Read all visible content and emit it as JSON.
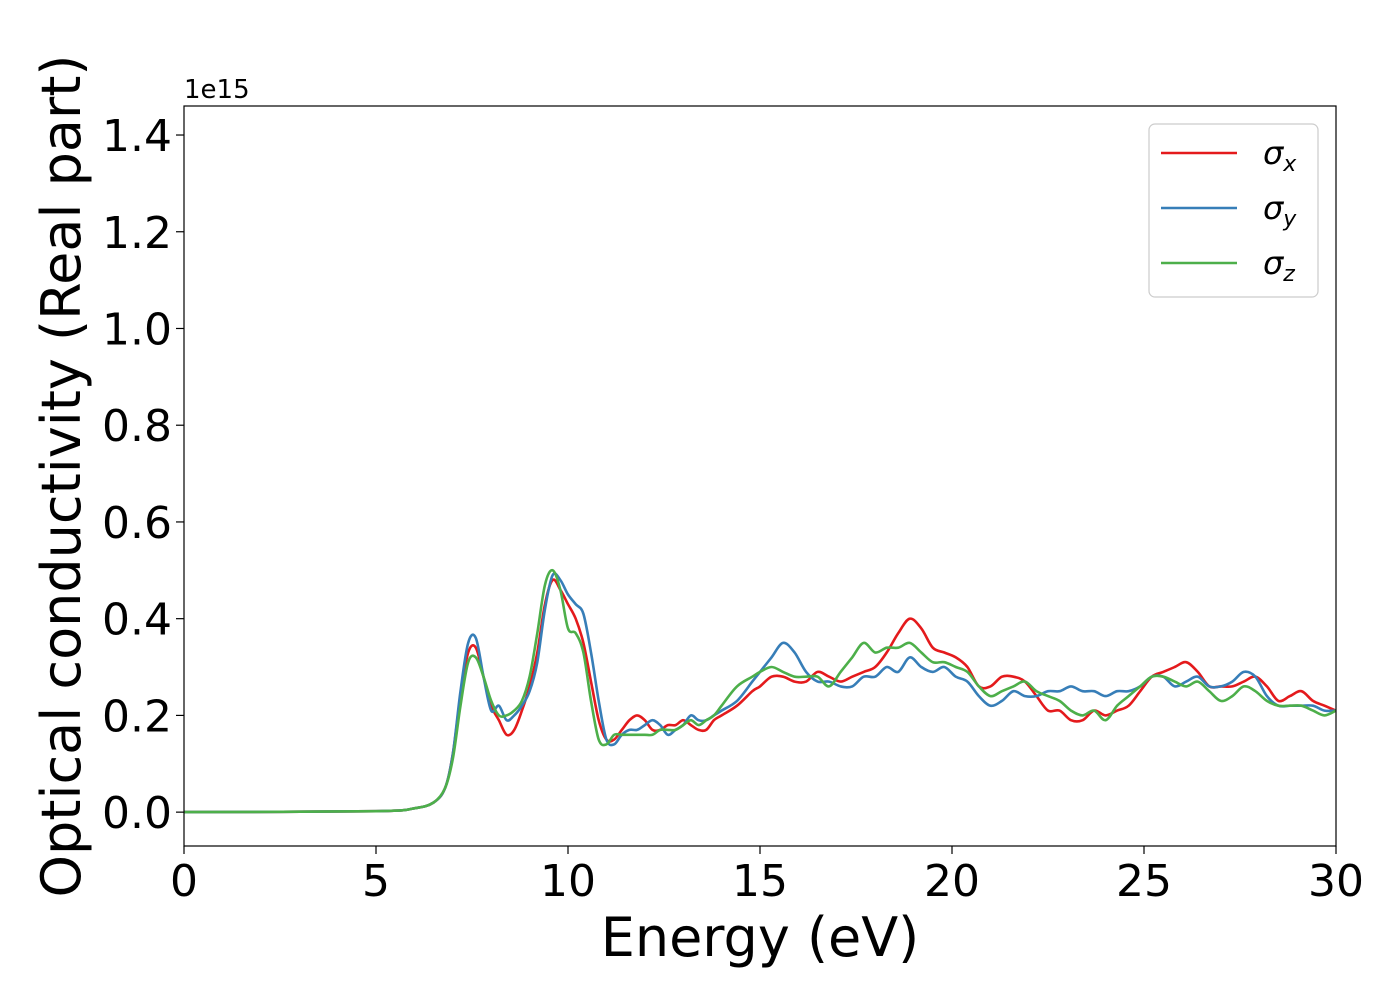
{
  "chart_data": {
    "type": "line",
    "xlabel": "Energy (eV)",
    "ylabel": "Optical conductivity (Real part)",
    "y_offset_label": "1e15",
    "xlim": [
      0,
      30
    ],
    "ylim": [
      -0.07,
      1.46
    ],
    "x_ticks": [
      0,
      5,
      10,
      15,
      20,
      25,
      30
    ],
    "x_tick_labels": [
      "0",
      "5",
      "10",
      "15",
      "20",
      "25",
      "30"
    ],
    "y_ticks": [
      0.0,
      0.2,
      0.4,
      0.6,
      0.8,
      1.0,
      1.2,
      1.4
    ],
    "y_tick_labels": [
      "0.0",
      "0.2",
      "0.4",
      "0.6",
      "0.8",
      "1.0",
      "1.2",
      "1.4"
    ],
    "grid": false,
    "legend_position": "top-right",
    "series": [
      {
        "name": "σ",
        "subscript": "x",
        "color": "#e41a1c",
        "x": [
          0,
          5,
          6,
          6.5,
          6.8,
          7.0,
          7.2,
          7.4,
          7.6,
          7.8,
          8.0,
          8.2,
          8.4,
          8.6,
          8.8,
          9.0,
          9.2,
          9.4,
          9.6,
          9.8,
          10.0,
          10.2,
          10.4,
          10.6,
          10.8,
          11.0,
          11.2,
          11.4,
          11.6,
          11.8,
          12.0,
          12.2,
          12.4,
          12.6,
          12.8,
          13.0,
          13.2,
          13.4,
          13.6,
          13.8,
          14.0,
          14.4,
          14.8,
          15.0,
          15.3,
          15.6,
          15.9,
          16.2,
          16.5,
          16.8,
          17.1,
          17.4,
          17.7,
          18.0,
          18.3,
          18.6,
          18.9,
          19.2,
          19.5,
          19.8,
          20.1,
          20.4,
          20.7,
          21.0,
          21.3,
          21.6,
          21.9,
          22.2,
          22.5,
          22.8,
          23.1,
          23.4,
          23.7,
          24.0,
          24.3,
          24.6,
          24.9,
          25.2,
          25.5,
          25.8,
          26.1,
          26.4,
          26.7,
          27.0,
          27.3,
          27.6,
          27.9,
          28.2,
          28.5,
          28.8,
          29.1,
          29.4,
          29.7,
          30.0
        ],
        "values": [
          0.0,
          0.002,
          0.008,
          0.02,
          0.05,
          0.12,
          0.24,
          0.33,
          0.34,
          0.28,
          0.22,
          0.19,
          0.16,
          0.17,
          0.21,
          0.26,
          0.33,
          0.43,
          0.48,
          0.46,
          0.43,
          0.4,
          0.35,
          0.27,
          0.19,
          0.15,
          0.15,
          0.17,
          0.19,
          0.2,
          0.19,
          0.17,
          0.17,
          0.18,
          0.18,
          0.19,
          0.18,
          0.17,
          0.17,
          0.19,
          0.2,
          0.22,
          0.25,
          0.26,
          0.28,
          0.28,
          0.27,
          0.27,
          0.29,
          0.28,
          0.27,
          0.28,
          0.29,
          0.3,
          0.33,
          0.37,
          0.4,
          0.38,
          0.34,
          0.33,
          0.32,
          0.3,
          0.26,
          0.26,
          0.28,
          0.28,
          0.27,
          0.24,
          0.21,
          0.21,
          0.19,
          0.19,
          0.21,
          0.2,
          0.21,
          0.22,
          0.25,
          0.28,
          0.29,
          0.3,
          0.31,
          0.29,
          0.26,
          0.26,
          0.26,
          0.27,
          0.28,
          0.26,
          0.23,
          0.24,
          0.25,
          0.23,
          0.22,
          0.21
        ]
      },
      {
        "name": "σ",
        "subscript": "y",
        "color": "#377eb8",
        "x": [
          0,
          5,
          6,
          6.5,
          6.8,
          7.0,
          7.2,
          7.4,
          7.6,
          7.8,
          8.0,
          8.2,
          8.4,
          8.6,
          8.8,
          9.0,
          9.2,
          9.4,
          9.6,
          9.8,
          10.0,
          10.2,
          10.4,
          10.6,
          10.8,
          11.0,
          11.2,
          11.4,
          11.6,
          11.8,
          12.0,
          12.2,
          12.4,
          12.6,
          12.8,
          13.0,
          13.2,
          13.4,
          13.6,
          13.8,
          14.0,
          14.4,
          14.8,
          15.0,
          15.3,
          15.6,
          15.9,
          16.2,
          16.5,
          16.8,
          17.1,
          17.4,
          17.7,
          18.0,
          18.3,
          18.6,
          18.9,
          19.2,
          19.5,
          19.8,
          20.1,
          20.4,
          20.7,
          21.0,
          21.3,
          21.6,
          21.9,
          22.2,
          22.5,
          22.8,
          23.1,
          23.4,
          23.7,
          24.0,
          24.3,
          24.6,
          24.9,
          25.2,
          25.5,
          25.8,
          26.1,
          26.4,
          26.7,
          27.0,
          27.3,
          27.6,
          27.9,
          28.2,
          28.5,
          28.8,
          29.1,
          29.4,
          29.7,
          30.0
        ],
        "values": [
          0.0,
          0.002,
          0.008,
          0.02,
          0.05,
          0.12,
          0.25,
          0.35,
          0.36,
          0.28,
          0.21,
          0.22,
          0.19,
          0.2,
          0.22,
          0.25,
          0.31,
          0.42,
          0.49,
          0.48,
          0.45,
          0.43,
          0.41,
          0.33,
          0.23,
          0.15,
          0.14,
          0.16,
          0.17,
          0.17,
          0.18,
          0.19,
          0.18,
          0.16,
          0.17,
          0.18,
          0.2,
          0.19,
          0.19,
          0.2,
          0.21,
          0.23,
          0.27,
          0.29,
          0.32,
          0.35,
          0.33,
          0.29,
          0.27,
          0.27,
          0.26,
          0.26,
          0.28,
          0.28,
          0.3,
          0.29,
          0.32,
          0.3,
          0.29,
          0.3,
          0.28,
          0.27,
          0.24,
          0.22,
          0.23,
          0.25,
          0.24,
          0.24,
          0.25,
          0.25,
          0.26,
          0.25,
          0.25,
          0.24,
          0.25,
          0.25,
          0.26,
          0.28,
          0.28,
          0.26,
          0.27,
          0.28,
          0.26,
          0.26,
          0.27,
          0.29,
          0.28,
          0.24,
          0.22,
          0.22,
          0.22,
          0.22,
          0.21,
          0.21
        ]
      },
      {
        "name": "σ",
        "subscript": "z",
        "color": "#4daf4a",
        "x": [
          0,
          5,
          6,
          6.5,
          6.8,
          7.0,
          7.2,
          7.4,
          7.6,
          7.8,
          8.0,
          8.2,
          8.4,
          8.6,
          8.8,
          9.0,
          9.2,
          9.4,
          9.6,
          9.8,
          10.0,
          10.2,
          10.4,
          10.6,
          10.8,
          11.0,
          11.2,
          11.4,
          11.6,
          11.8,
          12.0,
          12.2,
          12.4,
          12.6,
          12.8,
          13.0,
          13.2,
          13.4,
          13.6,
          13.8,
          14.0,
          14.4,
          14.8,
          15.0,
          15.3,
          15.6,
          15.9,
          16.2,
          16.5,
          16.8,
          17.1,
          17.4,
          17.7,
          18.0,
          18.3,
          18.6,
          18.9,
          19.2,
          19.5,
          19.8,
          20.1,
          20.4,
          20.7,
          21.0,
          21.3,
          21.6,
          21.9,
          22.2,
          22.5,
          22.8,
          23.1,
          23.4,
          23.7,
          24.0,
          24.3,
          24.6,
          24.9,
          25.2,
          25.5,
          25.8,
          26.1,
          26.4,
          26.7,
          27.0,
          27.3,
          27.6,
          27.9,
          28.2,
          28.5,
          28.8,
          29.1,
          29.4,
          29.7,
          30.0
        ],
        "values": [
          0.0,
          0.002,
          0.008,
          0.02,
          0.05,
          0.11,
          0.22,
          0.31,
          0.32,
          0.28,
          0.23,
          0.2,
          0.2,
          0.21,
          0.23,
          0.28,
          0.37,
          0.47,
          0.5,
          0.46,
          0.38,
          0.37,
          0.33,
          0.23,
          0.15,
          0.14,
          0.16,
          0.16,
          0.16,
          0.16,
          0.16,
          0.16,
          0.17,
          0.17,
          0.17,
          0.18,
          0.19,
          0.18,
          0.19,
          0.2,
          0.22,
          0.26,
          0.28,
          0.29,
          0.3,
          0.29,
          0.28,
          0.28,
          0.28,
          0.26,
          0.29,
          0.32,
          0.35,
          0.33,
          0.34,
          0.34,
          0.35,
          0.33,
          0.31,
          0.31,
          0.3,
          0.29,
          0.26,
          0.24,
          0.25,
          0.26,
          0.27,
          0.25,
          0.24,
          0.23,
          0.21,
          0.2,
          0.21,
          0.19,
          0.22,
          0.24,
          0.26,
          0.28,
          0.28,
          0.27,
          0.26,
          0.27,
          0.25,
          0.23,
          0.24,
          0.26,
          0.25,
          0.23,
          0.22,
          0.22,
          0.22,
          0.21,
          0.2,
          0.21
        ]
      }
    ]
  }
}
